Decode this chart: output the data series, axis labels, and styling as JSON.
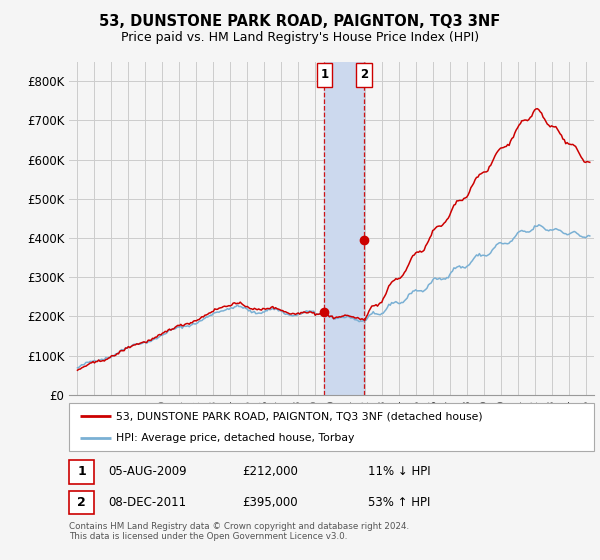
{
  "title": "53, DUNSTONE PARK ROAD, PAIGNTON, TQ3 3NF",
  "subtitle": "Price paid vs. HM Land Registry's House Price Index (HPI)",
  "ylabel_ticks": [
    "£0",
    "£100K",
    "£200K",
    "£300K",
    "£400K",
    "£500K",
    "£600K",
    "£700K",
    "£800K"
  ],
  "ytick_vals": [
    0,
    100000,
    200000,
    300000,
    400000,
    500000,
    600000,
    700000,
    800000
  ],
  "ylim": [
    0,
    850000
  ],
  "xlim_start": 1994.5,
  "xlim_end": 2025.5,
  "transaction1": {
    "date_x": 2009.58,
    "price": 212000,
    "label": "1",
    "date_str": "05-AUG-2009",
    "price_str": "£212,000",
    "hpi_str": "11% ↓ HPI"
  },
  "transaction2": {
    "date_x": 2011.92,
    "price": 395000,
    "label": "2",
    "date_str": "08-DEC-2011",
    "price_str": "£395,000",
    "hpi_str": "53% ↑ HPI"
  },
  "shade_x1": 2009.58,
  "shade_x2": 2011.92,
  "shade_color": "#ccd9ee",
  "line_red_color": "#cc0000",
  "line_blue_color": "#7ab0d4",
  "marker_red_color": "#cc0000",
  "grid_color": "#cccccc",
  "bg_color": "#f5f5f5",
  "legend_line1": "53, DUNSTONE PARK ROAD, PAIGNTON, TQ3 3NF (detached house)",
  "legend_line2": "HPI: Average price, detached house, Torbay",
  "footnote": "Contains HM Land Registry data © Crown copyright and database right 2024.\nThis data is licensed under the Open Government Licence v3.0.",
  "title_fontsize": 10.5,
  "subtitle_fontsize": 9,
  "axis_fontsize": 8.5
}
